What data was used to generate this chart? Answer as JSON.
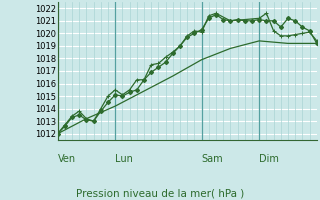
{
  "xlabel": "Pression niveau de la mer( hPa )",
  "bg_color": "#cce8e8",
  "grid_color_h": "#ffffff",
  "grid_color_v": "#aad4d4",
  "line_color": "#2d6b2d",
  "ylim": [
    1011.5,
    1022.5
  ],
  "yticks": [
    1012,
    1013,
    1014,
    1015,
    1016,
    1017,
    1018,
    1019,
    1020,
    1021,
    1022
  ],
  "day_labels": [
    "Ven",
    "Lun",
    "Sam",
    "Dim"
  ],
  "day_positions": [
    0,
    48,
    120,
    168
  ],
  "total_hours": 216,
  "line1_x": [
    0,
    6,
    12,
    18,
    24,
    30,
    36,
    42,
    48,
    54,
    60,
    66,
    72,
    78,
    84,
    90,
    96,
    102,
    108,
    114,
    120,
    126,
    132,
    138,
    144,
    150,
    156,
    162,
    168,
    174,
    180,
    186,
    192,
    198,
    204,
    210,
    216
  ],
  "line1_y": [
    1012.0,
    1012.6,
    1013.3,
    1013.5,
    1013.1,
    1013.0,
    1013.8,
    1014.5,
    1015.1,
    1015.0,
    1015.3,
    1015.5,
    1016.3,
    1016.9,
    1017.3,
    1017.7,
    1018.4,
    1019.0,
    1019.7,
    1020.0,
    1020.3,
    1021.2,
    1021.5,
    1021.1,
    1021.0,
    1021.1,
    1021.0,
    1021.0,
    1021.1,
    1021.0,
    1021.0,
    1020.5,
    1021.2,
    1021.0,
    1020.5,
    1020.2,
    1019.2
  ],
  "line2_x": [
    0,
    6,
    12,
    18,
    24,
    30,
    36,
    42,
    48,
    54,
    60,
    66,
    72,
    78,
    84,
    90,
    96,
    102,
    108,
    114,
    120,
    126,
    132,
    144,
    168,
    174,
    180,
    186,
    192,
    198,
    204,
    210,
    216
  ],
  "line2_y": [
    1012.0,
    1012.7,
    1013.4,
    1013.8,
    1013.2,
    1013.0,
    1014.0,
    1015.0,
    1015.5,
    1015.1,
    1015.5,
    1016.3,
    1016.3,
    1017.5,
    1017.6,
    1018.1,
    1018.5,
    1019.0,
    1019.8,
    1020.2,
    1020.1,
    1021.4,
    1021.6,
    1021.0,
    1021.2,
    1021.6,
    1020.2,
    1019.8,
    1019.8,
    1019.9,
    1020.0,
    1020.1,
    1019.4
  ],
  "line3_x": [
    0,
    24,
    48,
    72,
    96,
    120,
    144,
    168,
    192,
    216
  ],
  "line3_y": [
    1012.0,
    1013.2,
    1014.2,
    1015.4,
    1016.6,
    1017.9,
    1018.8,
    1019.4,
    1019.2,
    1019.2
  ],
  "ytick_fontsize": 6,
  "xlabel_fontsize": 7.5,
  "day_label_fontsize": 7,
  "lw": 0.9,
  "marker_size": 2.0
}
